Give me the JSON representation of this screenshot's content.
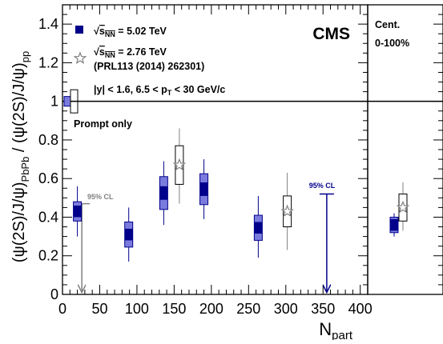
{
  "chart_data": {
    "type": "scatter",
    "xlabel_main": "N",
    "xlabel_sub": "part",
    "ylabel_parts": [
      {
        "t": "(ψ(2S)/J/ψ)",
        "sub": false
      },
      {
        "t": "PbPb",
        "sub": true
      },
      {
        "t": " / (ψ(2S)/J/ψ)",
        "sub": false
      },
      {
        "t": "pp",
        "sub": true
      }
    ],
    "xlim": [
      0,
      410
    ],
    "ylim": [
      0,
      1.5
    ],
    "x_ticks": [
      "0",
      "50",
      "100",
      "150",
      "200",
      "250",
      "300",
      "350",
      "400"
    ],
    "y_ticks": [
      "0",
      "0.2",
      "0.4",
      "0.6",
      "0.8",
      "1",
      "1.2",
      "1.4"
    ],
    "x_tick_values": [
      0,
      50,
      100,
      150,
      200,
      250,
      300,
      350,
      400
    ],
    "y_tick_values": [
      0,
      0.2,
      0.4,
      0.6,
      0.8,
      1.0,
      1.2,
      1.4
    ],
    "experiment_label": "CMS",
    "legend": {
      "series_502": {
        "prefix": "√",
        "main": "s",
        "sub": "NN",
        "suffix": " = 5.02 TeV"
      },
      "series_276": {
        "prefix": "√",
        "main": "s",
        "sub": "NN",
        "suffix": " = 2.76 TeV"
      },
      "series_276_ref": "(PRL113 (2014) 262301)",
      "cuts_a": "|y| < 1.6,  6.5 < p",
      "cuts_sub": "T",
      "cuts_b": " < 30 GeV/c",
      "prompt": "Prompt only"
    },
    "cl_label": "95% CL",
    "integrated_panel": {
      "title": "Cent.",
      "subtitle": "0-100%",
      "points": [
        {
          "series": "5.02 TeV",
          "y": 0.36,
          "stat": 0.03,
          "syst": 0.04,
          "err_lo": 0.3,
          "err_hi": 0.42
        },
        {
          "series": "2.76 TeV",
          "y": 0.45,
          "syst": 0.07,
          "err_lo": 0.33,
          "err_hi": 0.58
        }
      ]
    },
    "reference_line": 1.0,
    "global_uncertainty": {
      "series_502": 0.025,
      "series_276": 0.06
    },
    "series": [
      {
        "name": "5.02 TeV",
        "marker": "filled-square",
        "color": "#00008b",
        "points": [
          {
            "x": 20,
            "y": 0.43,
            "stat": 0.03,
            "syst": 0.05,
            "err_lo": 0.3,
            "err_hi": 0.56
          },
          {
            "x": 89,
            "y": 0.31,
            "stat": 0.03,
            "syst": 0.065,
            "err_lo": 0.17,
            "err_hi": 0.45
          },
          {
            "x": 136,
            "y": 0.525,
            "stat": 0.035,
            "syst": 0.085,
            "err_lo": 0.36,
            "err_hi": 0.69
          },
          {
            "x": 190,
            "y": 0.545,
            "stat": 0.035,
            "syst": 0.08,
            "err_lo": 0.39,
            "err_hi": 0.7
          },
          {
            "x": 263,
            "y": 0.345,
            "stat": 0.03,
            "syst": 0.065,
            "err_lo": 0.19,
            "err_hi": 0.51
          }
        ],
        "upper_limit": {
          "x": 355,
          "y": 0.52,
          "down_to": 0.01
        }
      },
      {
        "name": "2.76 TeV",
        "marker": "open-star",
        "color": "#808080",
        "points": [
          {
            "x": 157,
            "y": 0.67,
            "syst": 0.1,
            "err_lo": 0.47,
            "err_hi": 0.86
          },
          {
            "x": 302,
            "y": 0.43,
            "syst": 0.08,
            "err_lo": 0.23,
            "err_hi": 0.63
          }
        ],
        "upper_limit": {
          "x": 26,
          "y": 0.47,
          "down_to": 0.01
        }
      }
    ],
    "colors": {
      "series_502_fill": "#7b7bde",
      "series_502_dark": "#00008b",
      "series_276": "#808080",
      "axis": "#000000"
    }
  }
}
